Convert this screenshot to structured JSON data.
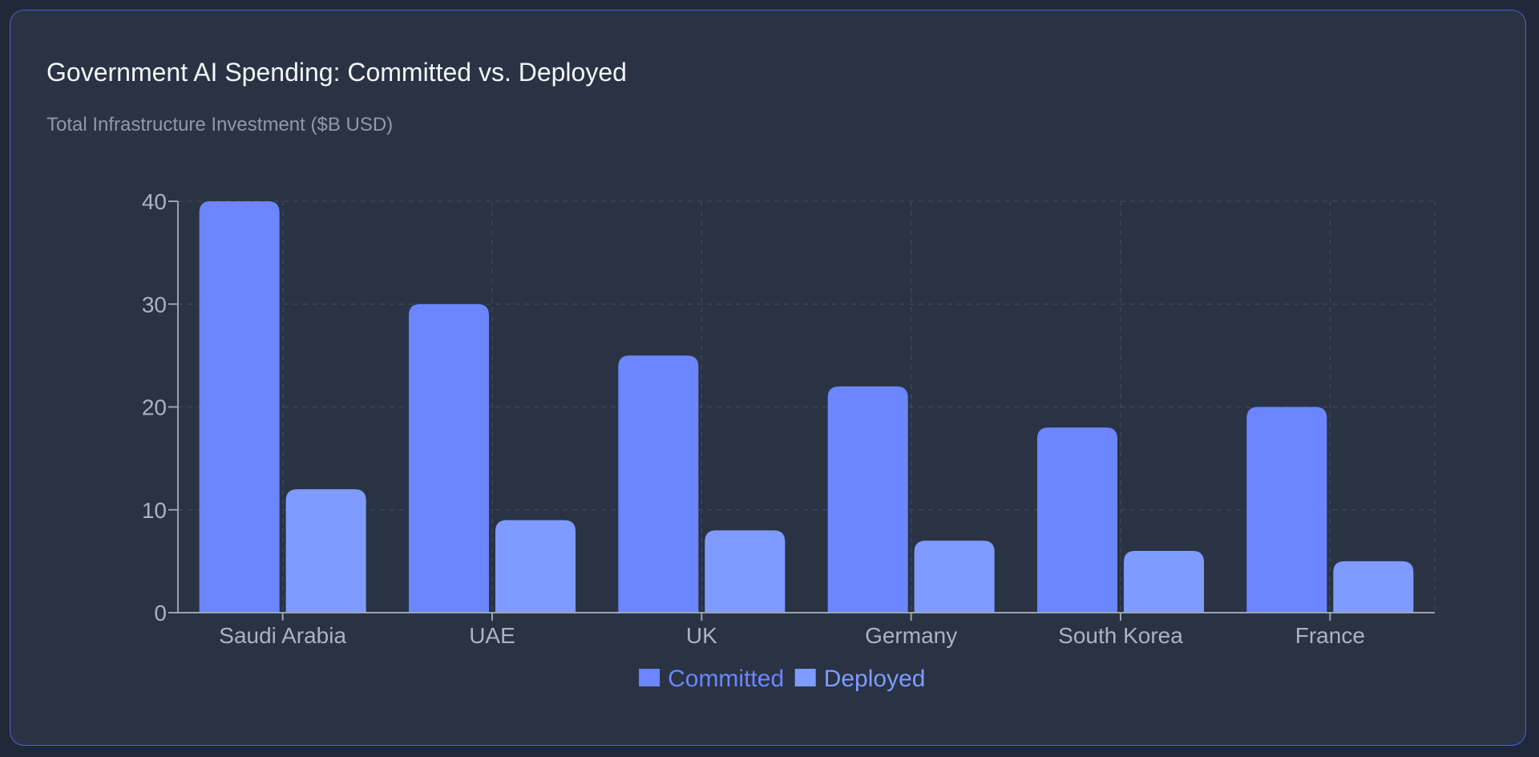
{
  "header": {
    "title": "Government AI Spending: Committed vs. Deployed",
    "subtitle": "Total Infrastructure Investment ($B USD)"
  },
  "colors": {
    "committed": "#6c86ff",
    "deployed": "#7f9bff",
    "axis": "#9aa3b2",
    "grid": "#3b4557",
    "tick_text": "#aab3c2"
  },
  "chart_data": {
    "type": "bar",
    "categories": [
      "Saudi Arabia",
      "UAE",
      "UK",
      "Germany",
      "South Korea",
      "France"
    ],
    "series": [
      {
        "name": "Committed",
        "values": [
          40,
          30,
          25,
          22,
          18,
          20
        ]
      },
      {
        "name": "Deployed",
        "values": [
          12,
          9,
          8,
          7,
          6,
          5
        ]
      }
    ],
    "title": "Government AI Spending: Committed vs. Deployed",
    "subtitle": "Total Infrastructure Investment ($B USD)",
    "xlabel": "",
    "ylabel": "",
    "ylim": [
      0,
      40
    ],
    "yticks": [
      0,
      10,
      20,
      30,
      40
    ],
    "grid": true,
    "legend": "bottom-center"
  }
}
